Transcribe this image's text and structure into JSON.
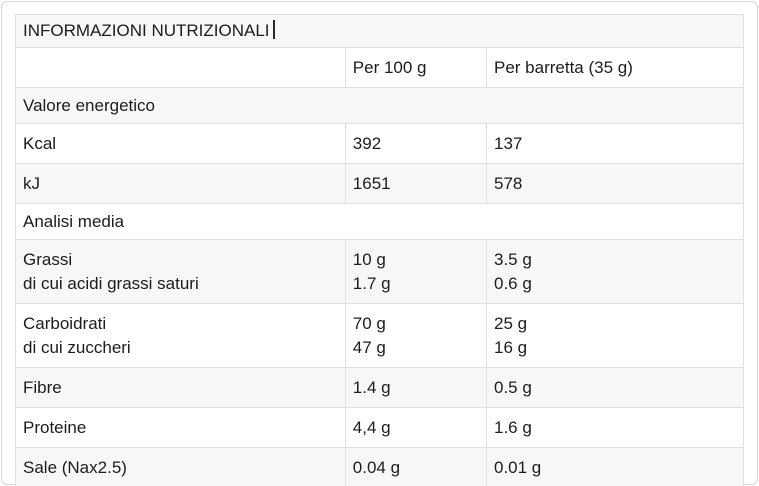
{
  "table": {
    "title": "INFORMAZIONI NUTRIZIONALI",
    "header": {
      "label_col": "",
      "per_100": "Per 100 g",
      "per_bar": "Per barretta (35 g)"
    },
    "section_energy": "Valore energetico",
    "section_analysis": "Analisi media",
    "rows": {
      "kcal": {
        "label": "Kcal",
        "per100": "392",
        "perbar": "137"
      },
      "kj": {
        "label": "kJ",
        "per100": "1651",
        "perbar": "578"
      },
      "fats": {
        "label": "Grassi",
        "sublabel": "di cui acidi grassi saturi",
        "per100": "10 g",
        "per100_sub": "1.7 g",
        "perbar": "3.5 g",
        "perbar_sub": "0.6 g"
      },
      "carbs": {
        "label": "Carboidrati",
        "sublabel": "di cui zuccheri",
        "per100": "70 g",
        "per100_sub": "47 g",
        "perbar": "25 g",
        "perbar_sub": "16 g"
      },
      "fiber": {
        "label": "Fibre",
        "per100": "1.4 g",
        "perbar": "0.5 g"
      },
      "protein": {
        "label": "Proteine",
        "per100": "4,4 g",
        "perbar": "1.6 g"
      },
      "salt": {
        "label": "Sale (Nax2.5)",
        "per100": "0.04 g",
        "perbar": "0.01 g"
      }
    },
    "colors": {
      "stripe_bg": "#f7f7f7",
      "border": "#e0e0e0",
      "text": "#1c1c1c",
      "page_border": "#d6d6d6"
    }
  }
}
